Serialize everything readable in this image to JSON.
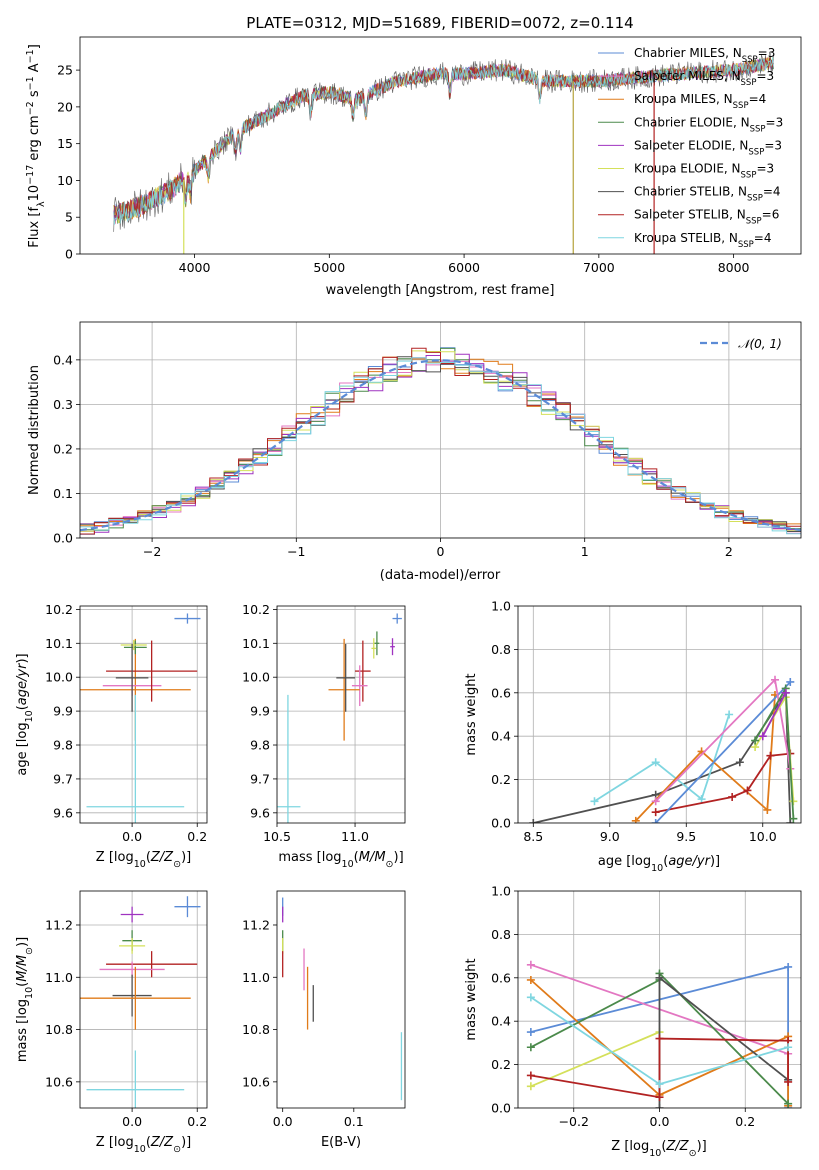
{
  "title": "PLATE=0312, MJD=51689, FIBERID=0072, z=0.114",
  "colors": {
    "Chabrier MILES": "#5b8bd6",
    "Salpeter MILES": "#e377c2",
    "Kroupa MILES": "#e07b1a",
    "Chabrier ELODIE": "#4b8a4b",
    "Salpeter ELODIE": "#9f33c0",
    "Kroupa ELODIE": "#d4e05a",
    "Chabrier STELIB": "#505050",
    "Salpeter STELIB": "#b22222",
    "Kroupa STELIB": "#7fd6e0"
  },
  "chart_data": [
    {
      "id": "spectrum",
      "type": "line",
      "title": "PLATE=0312, MJD=51689, FIBERID=0072, z=0.114",
      "xlabel": "wavelength [Angstrom, rest frame]",
      "ylabel": "Flux [f_λ 10^-17 erg cm^-2 s^-1 A^-1]",
      "xlim": [
        3150,
        8500
      ],
      "ylim": [
        0,
        29.5
      ],
      "xticks": [
        4000,
        5000,
        6000,
        7000,
        8000
      ],
      "yticks": [
        0,
        5,
        10,
        15,
        20,
        25
      ],
      "grid": false,
      "legend": "top-right",
      "legend_entries": [
        {
          "name": "Chabrier MILES",
          "nssp": "3"
        },
        {
          "name": "Salpeter MILES",
          "nssp": "3"
        },
        {
          "name": "Kroupa MILES",
          "nssp": "4"
        },
        {
          "name": "Chabrier ELODIE",
          "nssp": "3"
        },
        {
          "name": "Salpeter ELODIE",
          "nssp": "3"
        },
        {
          "name": "Kroupa ELODIE",
          "nssp": "3"
        },
        {
          "name": "Chabrier STELIB",
          "nssp": "4"
        },
        {
          "name": "Salpeter STELIB",
          "nssp": "6"
        },
        {
          "name": "Kroupa STELIB",
          "nssp": "4"
        }
      ],
      "continuum": {
        "x": [
          3400,
          3600,
          3800,
          3950,
          4100,
          4300,
          4500,
          4800,
          5000,
          5200,
          5500,
          5800,
          6000,
          6300,
          6600,
          7000,
          7300,
          7600,
          8000,
          8300
        ],
        "y": [
          5.3,
          6.5,
          8.5,
          10.5,
          13.0,
          16.5,
          18.5,
          21.5,
          22.0,
          21.0,
          23.5,
          24.5,
          24.5,
          25.0,
          23.5,
          23.5,
          24.0,
          24.5,
          25.0,
          26.0
        ]
      },
      "spikes": [
        {
          "x": 3920,
          "y": 0
        },
        {
          "x": 6810,
          "y": 0
        },
        {
          "x": 7410,
          "y": 0
        }
      ]
    },
    {
      "id": "residuals",
      "type": "step",
      "xlabel": "(data-model)/error",
      "ylabel": "Normed distribution",
      "xlim": [
        -2.5,
        2.5
      ],
      "ylim": [
        0,
        0.485
      ],
      "xticks": [
        -2,
        -1,
        0,
        1,
        2
      ],
      "yticks": [
        0.0,
        0.1,
        0.2,
        0.3,
        0.4
      ],
      "grid": true,
      "legend": "top-right",
      "reference": {
        "label": "𝒩(0, 1)",
        "mean": 0,
        "sigma": 1,
        "color": "#5b8bd6"
      }
    },
    {
      "id": "age-vs-z",
      "type": "errorbar",
      "xlabel": "Z [log10(Z/Z⊙)]",
      "ylabel": "age [log10(age/yr)]",
      "xlim": [
        -0.16,
        0.23
      ],
      "ylim": [
        9.57,
        10.21
      ],
      "xticks": [
        0.0,
        0.2
      ],
      "yticks": [
        9.6,
        9.7,
        9.8,
        9.9,
        10.0,
        10.1,
        10.2
      ],
      "grid": true,
      "points": [
        {
          "model": "Chabrier MILES",
          "x": 0.17,
          "y": 10.173,
          "xerr": 0.04,
          "yerr": 0.015
        },
        {
          "model": "Kroupa MILES",
          "x": 0.01,
          "y": 9.963,
          "xerr": 0.17,
          "yerr": 0.15
        },
        {
          "model": "Salpeter MILES",
          "x": 0.0,
          "y": 9.975,
          "xerr": 0.09,
          "yerr": 0.03
        },
        {
          "model": "Chabrier ELODIE",
          "x": 0.01,
          "y": 10.088,
          "xerr": 0.035,
          "yerr": 0.02
        },
        {
          "model": "Kroupa ELODIE",
          "x": 0.005,
          "y": 10.095,
          "xerr": 0.04,
          "yerr": 0.015
        },
        {
          "model": "Salpeter STELIB",
          "x": 0.06,
          "y": 10.018,
          "xerr": 0.14,
          "yerr": 0.09
        },
        {
          "model": "Chabrier STELIB",
          "x": 0.0,
          "y": 9.998,
          "xerr": 0.05,
          "yerr": 0.1
        },
        {
          "model": "Kroupa STELIB",
          "x": 0.01,
          "y": 9.618,
          "xerr": 0.15,
          "yerr": 0.33
        }
      ]
    },
    {
      "id": "age-vs-mass",
      "type": "errorbar",
      "xlabel": "mass [log10(M/M⊙)]",
      "ylabel": "",
      "xlim": [
        10.5,
        11.32
      ],
      "ylim": [
        9.57,
        10.21
      ],
      "xticks": [
        10.5,
        11.0
      ],
      "yticks": [
        9.6,
        9.7,
        9.8,
        9.9,
        10.0,
        10.1,
        10.2
      ],
      "grid": true,
      "points": [
        {
          "model": "Chabrier MILES",
          "x": 11.27,
          "y": 10.173,
          "xerr": 0.03,
          "yerr": 0.015
        },
        {
          "model": "Salpeter ELODIE",
          "x": 11.24,
          "y": 10.09,
          "xerr": 0.015,
          "yerr": 0.025
        },
        {
          "model": "Chabrier ELODIE",
          "x": 11.14,
          "y": 10.1,
          "xerr": 0.015,
          "yerr": 0.035
        },
        {
          "model": "Kroupa ELODIE",
          "x": 11.12,
          "y": 10.085,
          "xerr": 0.015,
          "yerr": 0.03
        },
        {
          "model": "Salpeter STELIB",
          "x": 11.05,
          "y": 10.018,
          "xerr": 0.05,
          "yerr": 0.09
        },
        {
          "model": "Salpeter MILES",
          "x": 11.03,
          "y": 9.975,
          "xerr": 0.05,
          "yerr": 0.06
        },
        {
          "model": "Kroupa MILES",
          "x": 10.93,
          "y": 9.963,
          "xerr": 0.1,
          "yerr": 0.15
        },
        {
          "model": "Chabrier STELIB",
          "x": 10.94,
          "y": 9.998,
          "xerr": 0.06,
          "yerr": 0.1
        },
        {
          "model": "Kroupa STELIB",
          "x": 10.57,
          "y": 9.618,
          "xerr": 0.08,
          "yerr": 0.33
        }
      ]
    },
    {
      "id": "weight-vs-age",
      "type": "line",
      "xlabel": "age [log10(age/yr)]",
      "ylabel": "mass weight",
      "xlim": [
        8.4,
        10.25
      ],
      "ylim": [
        0.0,
        1.0
      ],
      "xticks": [
        8.5,
        9.0,
        9.5,
        10.0
      ],
      "yticks": [
        0.0,
        0.2,
        0.4,
        0.6,
        0.8,
        1.0
      ],
      "grid": true,
      "series": [
        {
          "model": "Chabrier STELIB",
          "x": [
            8.5,
            9.3,
            9.85,
            10.15,
            10.18
          ],
          "y": [
            0.0,
            0.13,
            0.28,
            0.6,
            0.0
          ]
        },
        {
          "model": "Kroupa STELIB",
          "x": [
            8.9,
            9.3,
            9.6,
            9.78
          ],
          "y": [
            0.1,
            0.28,
            0.11,
            0.5
          ]
        },
        {
          "model": "Kroupa MILES",
          "x": [
            9.17,
            9.6,
            10.03,
            10.08
          ],
          "y": [
            0.01,
            0.33,
            0.06,
            0.59
          ]
        },
        {
          "model": "Salpeter STELIB",
          "x": [
            9.3,
            9.8,
            9.9,
            10.05,
            10.18
          ],
          "y": [
            0.05,
            0.12,
            0.15,
            0.31,
            0.32
          ]
        },
        {
          "model": "Chabrier MILES",
          "x": [
            9.3,
            10.18
          ],
          "y": [
            0.0,
            0.65
          ]
        },
        {
          "model": "Salpeter MILES",
          "x": [
            9.3,
            10.08,
            10.18
          ],
          "y": [
            0.1,
            0.66,
            0.25
          ]
        },
        {
          "model": "Kroupa ELODIE",
          "x": [
            9.95,
            10.15,
            10.2
          ],
          "y": [
            0.35,
            0.58,
            0.1
          ]
        },
        {
          "model": "Chabrier ELODIE",
          "x": [
            9.95,
            10.15,
            10.2
          ],
          "y": [
            0.38,
            0.62,
            0.02
          ]
        },
        {
          "model": "Salpeter ELODIE",
          "x": [
            10.0,
            10.15
          ],
          "y": [
            0.4,
            0.6
          ]
        }
      ]
    },
    {
      "id": "mass-vs-z",
      "type": "errorbar",
      "xlabel": "Z [log10(Z/Z⊙)]",
      "ylabel": "mass [log10(M/M⊙)]",
      "xlim": [
        -0.16,
        0.23
      ],
      "ylim": [
        10.5,
        11.33
      ],
      "xticks": [
        0.0,
        0.2
      ],
      "yticks": [
        10.6,
        10.8,
        11.0,
        11.2
      ],
      "grid": true,
      "points": [
        {
          "model": "Chabrier MILES",
          "x": 0.17,
          "y": 11.27,
          "xerr": 0.04,
          "yerr": 0.04
        },
        {
          "model": "Salpeter ELODIE",
          "x": 0.0,
          "y": 11.24,
          "xerr": 0.035,
          "yerr": 0.03
        },
        {
          "model": "Chabrier ELODIE",
          "x": 0.0,
          "y": 11.14,
          "xerr": 0.03,
          "yerr": 0.04
        },
        {
          "model": "Kroupa ELODIE",
          "x": 0.0,
          "y": 11.12,
          "xerr": 0.04,
          "yerr": 0.03
        },
        {
          "model": "Salpeter STELIB",
          "x": 0.06,
          "y": 11.05,
          "xerr": 0.14,
          "yerr": 0.05
        },
        {
          "model": "Salpeter MILES",
          "x": 0.0,
          "y": 11.03,
          "xerr": 0.1,
          "yerr": 0.03
        },
        {
          "model": "Chabrier STELIB",
          "x": 0.0,
          "y": 10.93,
          "xerr": 0.06,
          "yerr": 0.08
        },
        {
          "model": "Kroupa MILES",
          "x": 0.01,
          "y": 10.92,
          "xerr": 0.17,
          "yerr": 0.12
        },
        {
          "model": "Kroupa STELIB",
          "x": 0.01,
          "y": 10.57,
          "xerr": 0.15,
          "yerr": 0.15
        }
      ]
    },
    {
      "id": "mass-vs-ebv",
      "type": "errorbar",
      "xlabel": "E(B-V)",
      "ylabel": "",
      "xlim": [
        -0.008,
        0.172
      ],
      "ylim": [
        10.5,
        11.33
      ],
      "xticks": [
        0.0,
        0.1
      ],
      "yticks": [
        10.6,
        10.8,
        11.0,
        11.2
      ],
      "grid": false,
      "points": [
        {
          "model": "Chabrier MILES",
          "x": 0.0,
          "y": 11.27,
          "xerr": 0.0,
          "yerr": 0.035
        },
        {
          "model": "Salpeter ELODIE",
          "x": 0.0,
          "y": 11.24,
          "xerr": 0.0,
          "yerr": 0.03
        },
        {
          "model": "Chabrier ELODIE",
          "x": 0.0,
          "y": 11.14,
          "xerr": 0.0,
          "yerr": 0.04
        },
        {
          "model": "Kroupa ELODIE",
          "x": 0.0,
          "y": 11.12,
          "xerr": 0.0,
          "yerr": 0.03
        },
        {
          "model": "Salpeter STELIB",
          "x": 0.0,
          "y": 11.05,
          "xerr": 0.0,
          "yerr": 0.05
        },
        {
          "model": "Salpeter MILES",
          "x": 0.03,
          "y": 11.03,
          "xerr": 0.0,
          "yerr": 0.08
        },
        {
          "model": "Kroupa MILES",
          "x": 0.035,
          "y": 10.92,
          "xerr": 0.0,
          "yerr": 0.12
        },
        {
          "model": "Chabrier STELIB",
          "x": 0.043,
          "y": 10.9,
          "xerr": 0.0,
          "yerr": 0.07
        },
        {
          "model": "Kroupa STELIB",
          "x": 0.167,
          "y": 10.66,
          "xerr": 0.0,
          "yerr": 0.13
        }
      ]
    },
    {
      "id": "weight-vs-z",
      "type": "line",
      "xlabel": "Z [log10(Z/Z⊙)]",
      "ylabel": "mass weight",
      "xlim": [
        -0.33,
        0.33
      ],
      "ylim": [
        0.0,
        1.0
      ],
      "xticks": [
        -0.2,
        0.0,
        0.2
      ],
      "yticks": [
        0.0,
        0.2,
        0.4,
        0.6,
        0.8,
        1.0
      ],
      "grid": true,
      "series": [
        {
          "model": "Chabrier MILES",
          "x": [
            -0.3,
            0.3,
            0.3
          ],
          "y": [
            0.35,
            0.65,
            0.0
          ]
        },
        {
          "model": "Salpeter MILES",
          "x": [
            -0.3,
            0.3
          ],
          "y": [
            0.66,
            0.25
          ]
        },
        {
          "model": "Kroupa MILES",
          "x": [
            -0.3,
            0.0,
            0.3,
            0.3
          ],
          "y": [
            0.59,
            0.06,
            0.33,
            0.01
          ]
        },
        {
          "model": "Chabrier ELODIE",
          "x": [
            -0.3,
            0.0,
            0.0,
            0.3
          ],
          "y": [
            0.28,
            0.59,
            0.62,
            0.02
          ]
        },
        {
          "model": "Kroupa ELODIE",
          "x": [
            -0.3,
            0.0
          ],
          "y": [
            0.1,
            0.35
          ]
        },
        {
          "model": "Chabrier STELIB",
          "x": [
            0.0,
            0.0,
            0.3
          ],
          "y": [
            0.0,
            0.6,
            0.13
          ]
        },
        {
          "model": "Salpeter STELIB",
          "x": [
            -0.3,
            0.0,
            0.0,
            0.3,
            0.3
          ],
          "y": [
            0.15,
            0.05,
            0.32,
            0.31,
            0.12
          ]
        },
        {
          "model": "Kroupa STELIB",
          "x": [
            -0.3,
            0.0,
            0.3
          ],
          "y": [
            0.51,
            0.11,
            0.28
          ]
        }
      ]
    }
  ]
}
